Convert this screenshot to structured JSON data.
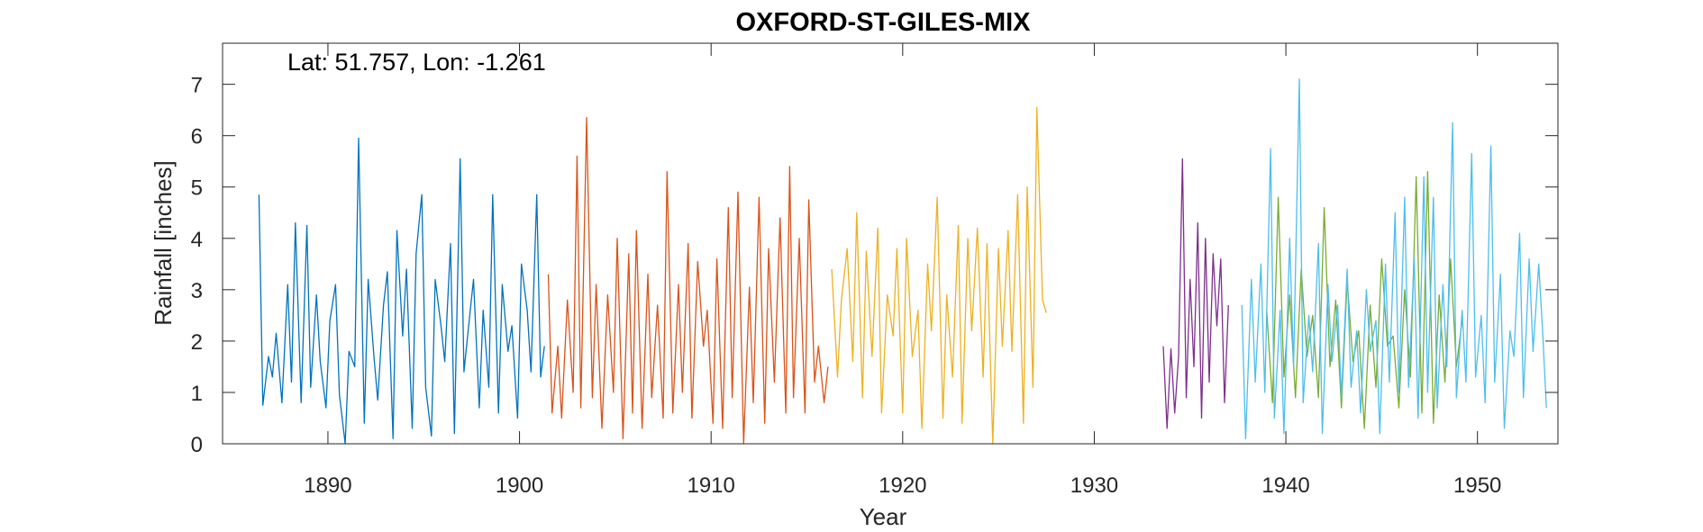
{
  "chart_data": {
    "type": "line",
    "title": "OXFORD-ST-GILES-MIX",
    "annotation": "Lat: 51.757, Lon: -1.261",
    "xlabel": "Year",
    "ylabel": "Rainfall [inches]",
    "xlim": [
      1884.5,
      1954.2
    ],
    "ylim": [
      0,
      7.8
    ],
    "xticks": [
      1890,
      1900,
      1910,
      1920,
      1930,
      1940,
      1950
    ],
    "yticks": [
      0,
      1,
      2,
      3,
      4,
      5,
      6,
      7
    ],
    "grid": false,
    "legend": "none",
    "series": [
      {
        "color": "#0072BD",
        "x": [
          1886.4,
          1886.6,
          1886.9,
          1887.1,
          1887.3,
          1887.6,
          1887.9,
          1888.1,
          1888.3,
          1888.6,
          1888.9,
          1889.1,
          1889.4,
          1889.6,
          1889.9,
          1890.1,
          1890.4,
          1890.6,
          1890.9,
          1891.1,
          1891.4,
          1891.6,
          1891.9,
          1892.1,
          1892.4,
          1892.6,
          1892.9,
          1893.1,
          1893.4,
          1893.6,
          1893.9,
          1894.1,
          1894.4,
          1894.6,
          1894.9,
          1895.1,
          1895.4,
          1895.6,
          1895.9,
          1896.1,
          1896.4,
          1896.6,
          1896.9,
          1897.1,
          1897.4,
          1897.6,
          1897.9,
          1898.1,
          1898.4,
          1898.6,
          1898.9,
          1899.1,
          1899.4,
          1899.6,
          1899.9,
          1900.1,
          1900.4,
          1900.6,
          1900.9,
          1901.1,
          1901.3
        ],
        "values": [
          4.85,
          0.75,
          1.7,
          1.3,
          2.15,
          0.8,
          3.1,
          1.2,
          4.3,
          0.8,
          4.25,
          1.1,
          2.9,
          1.6,
          0.7,
          2.4,
          3.1,
          0.95,
          0.0,
          1.8,
          1.5,
          5.95,
          0.4,
          3.2,
          1.7,
          0.85,
          2.7,
          3.35,
          0.1,
          4.15,
          2.1,
          3.4,
          0.3,
          3.7,
          4.85,
          1.1,
          0.15,
          3.2,
          2.3,
          1.6,
          3.9,
          0.2,
          5.55,
          1.4,
          2.5,
          3.2,
          0.7,
          2.6,
          1.1,
          4.85,
          0.6,
          3.1,
          1.8,
          2.3,
          0.5,
          3.5,
          2.6,
          1.4,
          4.85,
          1.3,
          1.9
        ]
      },
      {
        "color": "#D95319",
        "x": [
          1901.5,
          1901.7,
          1902.0,
          1902.2,
          1902.5,
          1902.8,
          1903.0,
          1903.2,
          1903.5,
          1903.8,
          1904.0,
          1904.3,
          1904.6,
          1904.9,
          1905.1,
          1905.4,
          1905.7,
          1905.9,
          1906.1,
          1906.4,
          1906.7,
          1906.9,
          1907.2,
          1907.5,
          1907.7,
          1908.0,
          1908.3,
          1908.5,
          1908.8,
          1909.0,
          1909.3,
          1909.6,
          1909.8,
          1910.1,
          1910.3,
          1910.6,
          1910.9,
          1911.1,
          1911.4,
          1911.7,
          1912.0,
          1912.2,
          1912.5,
          1912.8,
          1913.0,
          1913.3,
          1913.6,
          1913.9,
          1914.1,
          1914.3,
          1914.6,
          1914.9,
          1915.1,
          1915.4,
          1915.6,
          1915.9,
          1916.1
        ],
        "values": [
          3.3,
          0.6,
          1.9,
          0.5,
          2.8,
          1.0,
          5.6,
          0.7,
          6.35,
          0.9,
          3.1,
          0.3,
          2.9,
          1.0,
          4.0,
          0.1,
          3.7,
          0.6,
          4.15,
          0.3,
          3.3,
          0.9,
          2.7,
          0.5,
          5.3,
          0.6,
          3.1,
          1.0,
          3.9,
          0.5,
          3.55,
          1.9,
          2.6,
          0.4,
          3.6,
          0.3,
          4.6,
          0.9,
          4.9,
          0.0,
          3.05,
          0.8,
          4.8,
          0.4,
          3.8,
          1.2,
          4.4,
          0.6,
          5.4,
          0.9,
          4.0,
          0.6,
          4.75,
          1.2,
          1.9,
          0.8,
          1.5
        ]
      },
      {
        "color": "#EDB120",
        "x": [
          1916.3,
          1916.6,
          1916.8,
          1917.1,
          1917.4,
          1917.6,
          1917.9,
          1918.1,
          1918.4,
          1918.7,
          1918.9,
          1919.2,
          1919.5,
          1919.7,
          1920.0,
          1920.2,
          1920.5,
          1920.8,
          1921.0,
          1921.3,
          1921.5,
          1921.8,
          1922.1,
          1922.3,
          1922.6,
          1922.9,
          1923.1,
          1923.4,
          1923.6,
          1923.9,
          1924.2,
          1924.4,
          1924.7,
          1925.0,
          1925.2,
          1925.5,
          1925.7,
          1926.0,
          1926.3,
          1926.5,
          1926.8,
          1927.0,
          1927.3,
          1927.5
        ],
        "values": [
          3.4,
          1.3,
          2.8,
          3.8,
          1.6,
          4.5,
          0.9,
          3.75,
          1.7,
          4.2,
          0.6,
          2.9,
          2.1,
          3.8,
          0.6,
          4.0,
          1.7,
          2.6,
          0.3,
          3.5,
          2.2,
          4.8,
          0.5,
          2.9,
          1.3,
          4.25,
          0.4,
          4.0,
          2.2,
          4.2,
          1.3,
          3.9,
          0.0,
          3.8,
          1.9,
          4.15,
          1.8,
          4.85,
          0.4,
          5.0,
          1.1,
          6.55,
          2.8,
          2.55
        ]
      },
      {
        "color": "#7E2F8E",
        "x": [
          1933.6,
          1933.8,
          1934.0,
          1934.2,
          1934.4,
          1934.6,
          1934.8,
          1935.0,
          1935.2,
          1935.4,
          1935.6,
          1935.8,
          1936.0,
          1936.2,
          1936.4,
          1936.6,
          1936.8,
          1937.0
        ],
        "values": [
          1.9,
          0.3,
          1.85,
          0.6,
          1.7,
          5.55,
          0.9,
          3.2,
          1.5,
          4.3,
          0.5,
          4.0,
          1.2,
          3.7,
          2.3,
          3.6,
          0.8,
          2.7
        ]
      },
      {
        "color": "#77AC30",
        "x": [
          1939.0,
          1939.3,
          1939.6,
          1939.9,
          1940.2,
          1940.5,
          1940.8,
          1941.1,
          1941.4,
          1941.7,
          1942.0,
          1942.3,
          1942.6,
          1942.9,
          1943.2,
          1943.5,
          1943.8,
          1944.1,
          1944.4,
          1944.7,
          1945.0,
          1945.3,
          1945.6,
          1945.9,
          1946.2,
          1946.5,
          1946.8,
          1947.1,
          1947.4,
          1947.7,
          1948.0,
          1948.3,
          1948.6,
          1948.9,
          1949.2
        ],
        "values": [
          2.6,
          0.8,
          4.8,
          1.3,
          2.9,
          0.9,
          3.4,
          1.7,
          2.5,
          0.9,
          4.6,
          1.5,
          2.8,
          0.7,
          3.2,
          1.6,
          2.2,
          0.3,
          2.7,
          1.1,
          3.6,
          1.9,
          2.1,
          0.7,
          3.0,
          1.3,
          5.2,
          0.6,
          5.3,
          0.4,
          2.9,
          1.2,
          3.6,
          1.5,
          2.4
        ]
      },
      {
        "color": "#4DBEEE",
        "x": [
          1937.7,
          1937.9,
          1938.2,
          1938.4,
          1938.7,
          1938.9,
          1939.2,
          1939.4,
          1939.7,
          1939.9,
          1940.2,
          1940.4,
          1940.7,
          1940.9,
          1941.2,
          1941.4,
          1941.7,
          1941.9,
          1942.2,
          1942.4,
          1942.7,
          1942.9,
          1943.2,
          1943.4,
          1943.7,
          1943.9,
          1944.2,
          1944.4,
          1944.7,
          1944.9,
          1945.2,
          1945.4,
          1945.7,
          1945.9,
          1946.2,
          1946.4,
          1946.7,
          1946.9,
          1947.2,
          1947.4,
          1947.7,
          1947.9,
          1948.2,
          1948.4,
          1948.7,
          1948.9,
          1949.2,
          1949.4,
          1949.7,
          1949.9,
          1950.2,
          1950.4,
          1950.7,
          1950.9,
          1951.2,
          1951.4,
          1951.7,
          1951.9,
          1952.2,
          1952.4,
          1952.7,
          1952.9,
          1953.2,
          1953.4,
          1953.6
        ],
        "values": [
          2.7,
          0.1,
          3.2,
          1.2,
          3.5,
          1.0,
          5.75,
          0.5,
          2.6,
          0.2,
          4.0,
          1.5,
          7.1,
          0.8,
          2.5,
          1.4,
          3.9,
          0.2,
          3.1,
          1.6,
          2.7,
          0.9,
          3.4,
          1.1,
          2.2,
          0.6,
          3.0,
          1.8,
          2.4,
          0.2,
          3.5,
          1.2,
          4.5,
          1.0,
          4.8,
          1.1,
          3.6,
          0.5,
          5.2,
          1.0,
          4.8,
          0.7,
          3.1,
          1.5,
          6.25,
          0.9,
          2.6,
          1.2,
          5.65,
          1.3,
          2.5,
          0.8,
          5.8,
          1.2,
          3.3,
          0.3,
          2.2,
          1.7,
          4.1,
          0.9,
          3.6,
          1.8,
          3.5,
          2.2,
          0.7
        ]
      }
    ]
  }
}
